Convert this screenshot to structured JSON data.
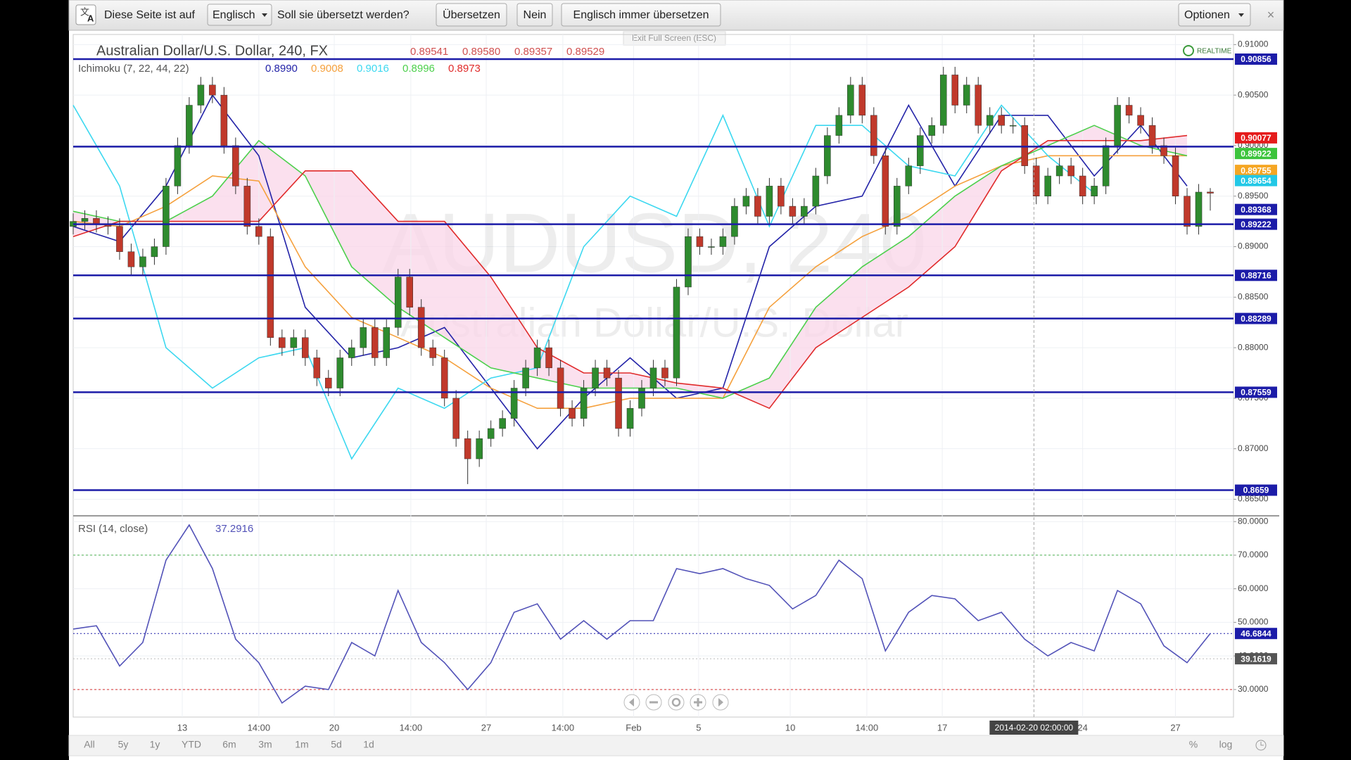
{
  "browser": {
    "translate_bar": {
      "prefix": "Diese Seite ist auf",
      "language": "Englisch",
      "question": "Soll sie übersetzt werden?",
      "translate": "Übersetzen",
      "no": "Nein",
      "always": "Englisch immer übersetzen",
      "options": "Optionen",
      "close": "×"
    },
    "exit_fullscreen": "Exit Full Screen (ESC)"
  },
  "chart_data": [
    {
      "type": "candlestick",
      "title": "Australian Dollar/U.S. Dollar, 240, FX",
      "watermark": [
        "AUDUSD, 240",
        "Australian Dollar/U.S. Dollar"
      ],
      "ohlc_legend": [
        "0.89541",
        "0.89580",
        "0.89357",
        "0.89529"
      ],
      "realtime": "REALTIME",
      "up_color": "#2e8b2e",
      "down_color": "#c0392b",
      "x": [
        0,
        1,
        2,
        3,
        4,
        5,
        6,
        7,
        8,
        9,
        10,
        11,
        12,
        13,
        14,
        15,
        16,
        17,
        18,
        19,
        20,
        21,
        22,
        23,
        24,
        25,
        26,
        27,
        28,
        29,
        30,
        31,
        32,
        33,
        34,
        35,
        36,
        37,
        38,
        39,
        40,
        41,
        42,
        43,
        44,
        45,
        46,
        47,
        48,
        49,
        50,
        51,
        52,
        53,
        54,
        55,
        56,
        57,
        58,
        59,
        60,
        61,
        62,
        63,
        64,
        65,
        66,
        67,
        68,
        69,
        70,
        71,
        72,
        73,
        74,
        75,
        76,
        77,
        78,
        79,
        80,
        81,
        82,
        83,
        84,
        85,
        86,
        87,
        88,
        89,
        90,
        91,
        92,
        93,
        94,
        95,
        96,
        97,
        98
      ],
      "open": [
        0.892,
        0.8925,
        0.8928,
        0.8922,
        0.892,
        0.8895,
        0.888,
        0.889,
        0.89,
        0.896,
        0.9,
        0.904,
        0.906,
        0.905,
        0.9,
        0.896,
        0.892,
        0.891,
        0.881,
        0.88,
        0.881,
        0.879,
        0.877,
        0.876,
        0.879,
        0.88,
        0.882,
        0.879,
        0.882,
        0.887,
        0.884,
        0.88,
        0.879,
        0.875,
        0.871,
        0.869,
        0.871,
        0.872,
        0.873,
        0.876,
        0.878,
        0.88,
        0.878,
        0.874,
        0.873,
        0.876,
        0.878,
        0.877,
        0.872,
        0.874,
        0.876,
        0.878,
        0.877,
        0.886,
        0.891,
        0.89,
        0.89,
        0.891,
        0.894,
        0.895,
        0.893,
        0.896,
        0.894,
        0.893,
        0.894,
        0.897,
        0.901,
        0.903,
        0.906,
        0.903,
        0.899,
        0.892,
        0.896,
        0.898,
        0.901,
        0.902,
        0.907,
        0.904,
        0.906,
        0.902,
        0.903,
        0.902,
        0.902,
        0.898,
        0.895,
        0.897,
        0.898,
        0.897,
        0.895,
        0.896,
        0.9,
        0.904,
        0.903,
        0.902,
        0.9,
        0.899,
        0.895,
        0.892,
        0.89541
      ],
      "high": [
        0.8933,
        0.8936,
        0.8936,
        0.893,
        0.8928,
        0.8903,
        0.8898,
        0.8908,
        0.8968,
        0.9008,
        0.9048,
        0.9068,
        0.9068,
        0.9058,
        0.9008,
        0.8968,
        0.8928,
        0.8918,
        0.8818,
        0.8818,
        0.8818,
        0.8798,
        0.8778,
        0.8798,
        0.8808,
        0.8828,
        0.8828,
        0.8828,
        0.8878,
        0.8878,
        0.8848,
        0.8808,
        0.8798,
        0.8758,
        0.8718,
        0.8718,
        0.8728,
        0.8738,
        0.8768,
        0.8788,
        0.8808,
        0.8808,
        0.8788,
        0.8748,
        0.8768,
        0.8788,
        0.8788,
        0.8778,
        0.8748,
        0.8768,
        0.8788,
        0.8788,
        0.8868,
        0.8918,
        0.8918,
        0.8908,
        0.8918,
        0.8948,
        0.8958,
        0.8958,
        0.8968,
        0.8968,
        0.8948,
        0.8948,
        0.8978,
        0.9018,
        0.9038,
        0.9068,
        0.9068,
        0.9038,
        0.8998,
        0.8968,
        0.8988,
        0.9018,
        0.9028,
        0.9078,
        0.9078,
        0.9068,
        0.9068,
        0.9038,
        0.9038,
        0.9028,
        0.9028,
        0.8988,
        0.8978,
        0.8988,
        0.8988,
        0.8978,
        0.8968,
        0.9008,
        0.9048,
        0.9048,
        0.9038,
        0.9028,
        0.9008,
        0.8998,
        0.8958,
        0.8962,
        0.8958
      ],
      "low": [
        0.8912,
        0.8917,
        0.8914,
        0.8912,
        0.8887,
        0.8872,
        0.8872,
        0.8882,
        0.8892,
        0.8952,
        0.8992,
        0.9032,
        0.9042,
        0.8992,
        0.8952,
        0.8912,
        0.8902,
        0.8802,
        0.8792,
        0.8792,
        0.8782,
        0.8762,
        0.8752,
        0.8752,
        0.8782,
        0.8792,
        0.8782,
        0.8782,
        0.8812,
        0.8832,
        0.8792,
        0.8782,
        0.8742,
        0.8702,
        0.8665,
        0.8682,
        0.8702,
        0.8712,
        0.8722,
        0.8752,
        0.8772,
        0.8772,
        0.8732,
        0.8722,
        0.8722,
        0.8752,
        0.8762,
        0.8712,
        0.8712,
        0.8732,
        0.8752,
        0.8762,
        0.8762,
        0.8852,
        0.8892,
        0.8892,
        0.8892,
        0.8902,
        0.8932,
        0.8922,
        0.8922,
        0.8932,
        0.8922,
        0.8922,
        0.8932,
        0.8962,
        0.9002,
        0.9022,
        0.9022,
        0.8982,
        0.8912,
        0.8912,
        0.8952,
        0.8972,
        0.9002,
        0.9012,
        0.9032,
        0.9032,
        0.9012,
        0.9012,
        0.9012,
        0.9012,
        0.8972,
        0.8942,
        0.8942,
        0.8962,
        0.8962,
        0.8942,
        0.8942,
        0.8952,
        0.8992,
        0.9022,
        0.9012,
        0.8992,
        0.8982,
        0.8942,
        0.8912,
        0.8912,
        0.89357
      ],
      "close": [
        0.8925,
        0.8928,
        0.8922,
        0.892,
        0.8895,
        0.888,
        0.889,
        0.89,
        0.896,
        0.9,
        0.904,
        0.906,
        0.905,
        0.9,
        0.896,
        0.892,
        0.891,
        0.881,
        0.88,
        0.881,
        0.879,
        0.877,
        0.876,
        0.879,
        0.88,
        0.882,
        0.879,
        0.882,
        0.887,
        0.884,
        0.88,
        0.879,
        0.875,
        0.871,
        0.869,
        0.871,
        0.872,
        0.873,
        0.876,
        0.878,
        0.88,
        0.878,
        0.874,
        0.873,
        0.876,
        0.878,
        0.877,
        0.872,
        0.874,
        0.876,
        0.878,
        0.877,
        0.886,
        0.891,
        0.89,
        0.89,
        0.891,
        0.894,
        0.895,
        0.893,
        0.896,
        0.894,
        0.893,
        0.894,
        0.897,
        0.901,
        0.903,
        0.906,
        0.903,
        0.899,
        0.892,
        0.896,
        0.898,
        0.901,
        0.902,
        0.907,
        0.904,
        0.906,
        0.902,
        0.903,
        0.902,
        0.902,
        0.898,
        0.895,
        0.897,
        0.898,
        0.897,
        0.895,
        0.896,
        0.9,
        0.904,
        0.903,
        0.902,
        0.9,
        0.899,
        0.895,
        0.892,
        0.8954,
        0.89529
      ],
      "ichimoku": {
        "name": "Ichimoku (7, 22, 44, 22)",
        "x": [
          0,
          4,
          8,
          12,
          16,
          20,
          24,
          28,
          32,
          36,
          40,
          44,
          48,
          52,
          56,
          60,
          64,
          68,
          72,
          76,
          80,
          84,
          88,
          92,
          96
        ],
        "cloud": {
          "color": "#f9d6e8",
          "between": [
            3,
            4
          ]
        },
        "series": [
          {
            "color": "#2323a8",
            "legend_value": "0.8990",
            "values": [
              0.892,
              0.8905,
              0.896,
              0.905,
              0.899,
              0.884,
              0.879,
              0.88,
              0.882,
              0.876,
              0.87,
              0.875,
              0.879,
              0.875,
              0.876,
              0.89,
              0.894,
              0.895,
              0.904,
              0.896,
              0.903,
              0.903,
              0.897,
              0.902,
              0.896
            ]
          },
          {
            "color": "#f5a03c",
            "legend_value": "0.9008",
            "values": [
              0.8925,
              0.892,
              0.894,
              0.897,
              0.8965,
              0.888,
              0.883,
              0.881,
              0.879,
              0.876,
              0.874,
              0.874,
              0.875,
              0.875,
              0.875,
              0.884,
              0.888,
              0.891,
              0.893,
              0.896,
              0.898,
              0.899,
              0.899,
              0.899,
              0.899
            ]
          },
          {
            "color": "#3cd8f0",
            "legend_value": "0.9016",
            "values": [
              0.904,
              0.896,
              0.88,
              0.876,
              0.879,
              0.88,
              0.869,
              0.876,
              0.874,
              0.877,
              0.878,
              0.89,
              0.895,
              0.893,
              0.903,
              0.892,
              0.902,
              0.902,
              0.898,
              0.897,
              0.904,
              0.899,
              0.8953,
              null,
              null
            ]
          },
          {
            "color": "#4cd04c",
            "legend_value": "0.8996",
            "values": [
              0.8935,
              0.8925,
              0.8925,
              0.895,
              0.9005,
              0.897,
              0.888,
              0.884,
              0.881,
              0.878,
              0.877,
              0.876,
              0.876,
              0.876,
              0.875,
              0.877,
              0.884,
              0.888,
              0.891,
              0.895,
              0.898,
              0.9,
              0.902,
              0.9,
              0.899
            ]
          },
          {
            "color": "#e02a2a",
            "legend_value": "0.8973",
            "values": [
              0.891,
              0.8925,
              0.8925,
              0.8925,
              0.8925,
              0.8975,
              0.8975,
              0.8925,
              0.8925,
              0.887,
              0.88,
              0.8775,
              0.8775,
              0.8765,
              0.876,
              0.874,
              0.88,
              0.883,
              0.886,
              0.89,
              0.8975,
              0.9005,
              0.9005,
              0.9005,
              0.901
            ]
          }
        ]
      },
      "levels": [
        0.90856,
        0.8999,
        0.89222,
        0.88716,
        0.88289,
        0.87559,
        0.8659
      ],
      "level_color": "#1c1ca8",
      "untagged_levels": [
        1
      ],
      "price_tags": [
        {
          "value": 0.90077,
          "color": "#e51c1c"
        },
        {
          "value": 0.89922,
          "color": "#3cc43c"
        },
        {
          "value": 0.89755,
          "color": "#f5a623"
        },
        {
          "value": 0.89654,
          "color": "#22c8e6"
        },
        {
          "value": 0.89368,
          "color": "#1c1ca8"
        }
      ],
      "xlim": [
        0,
        100
      ],
      "ylim": [
        0.8635,
        0.911
      ],
      "yticks": [
        {
          "value": 0.865,
          "label": "0.86500"
        },
        {
          "value": 0.87,
          "label": "0.87000"
        },
        {
          "value": 0.875,
          "label": "0.87500"
        },
        {
          "value": 0.88,
          "label": "0.88000"
        },
        {
          "value": 0.885,
          "label": "0.88500"
        },
        {
          "value": 0.89,
          "label": "0.89000"
        },
        {
          "value": 0.895,
          "label": "0.89500"
        },
        {
          "value": 0.9,
          "label": "0.90000"
        },
        {
          "value": 0.905,
          "label": "0.90500"
        },
        {
          "value": 0.91,
          "label": "0.91000"
        }
      ],
      "grid": true
    },
    {
      "type": "line",
      "title": "RSI (14, close)",
      "legend_value": "37.2916",
      "color": "#5252b8",
      "x": [
        0,
        2,
        4,
        6,
        8,
        10,
        12,
        14,
        16,
        18,
        20,
        22,
        24,
        26,
        28,
        30,
        32,
        34,
        36,
        38,
        40,
        42,
        44,
        46,
        48,
        50,
        52,
        54,
        56,
        58,
        60,
        62,
        64,
        66,
        68,
        70,
        72,
        74,
        76,
        78,
        80,
        82,
        84,
        86,
        88,
        90,
        92,
        94,
        96,
        98
      ],
      "values": [
        48,
        49,
        37,
        44,
        68.5,
        79,
        66,
        45,
        38,
        26,
        31,
        30,
        44,
        40,
        59.5,
        44,
        38,
        30,
        38,
        53,
        55.5,
        45,
        50.5,
        45,
        50.5,
        50.5,
        66,
        64.5,
        66,
        63,
        61,
        54,
        58,
        68.5,
        63,
        41.5,
        53,
        58,
        57,
        50.5,
        53,
        45,
        40,
        44,
        41.5,
        59.5,
        55.5,
        43,
        38,
        46.6844
      ],
      "bands": [
        {
          "value": 70,
          "color": "#4caf50"
        },
        {
          "value": 30,
          "color": "#d83030"
        }
      ],
      "tags": [
        {
          "value": 39.1619,
          "color": "#555555"
        }
      ],
      "last_tag_color": "#1c1ca8",
      "xlim": [
        0,
        100
      ],
      "ylim": [
        21.8,
        81.3
      ],
      "yticks": [
        {
          "value": 30,
          "label": "30.0000"
        },
        {
          "value": 40,
          "label": "40.0000"
        },
        {
          "value": 50,
          "label": "50.0000"
        },
        {
          "value": 60,
          "label": "60.0000"
        },
        {
          "value": 70,
          "label": "70.0000"
        },
        {
          "value": 80,
          "label": "80.0000"
        }
      ],
      "xticks": [
        {
          "value": 9.4,
          "label": "13"
        },
        {
          "value": 16,
          "label": "14:00"
        },
        {
          "value": 22.5,
          "label": "20"
        },
        {
          "value": 29.1,
          "label": "14:00"
        },
        {
          "value": 35.6,
          "label": "27"
        },
        {
          "value": 42.2,
          "label": "14:00"
        },
        {
          "value": 48.3,
          "label": "Feb"
        },
        {
          "value": 53.9,
          "label": "5"
        },
        {
          "value": 61.8,
          "label": "10"
        },
        {
          "value": 68.4,
          "label": "14:00"
        },
        {
          "value": 74.9,
          "label": "17"
        },
        {
          "value": 87,
          "label": "24"
        },
        {
          "value": 95,
          "label": "27"
        }
      ],
      "crosshair": {
        "x": 82.8,
        "label": "2014-02-20 02:00:00"
      },
      "grid": true
    }
  ],
  "toolbar": {
    "ranges": [
      "All",
      "5y",
      "1y",
      "YTD",
      "6m",
      "3m",
      "1m",
      "5d",
      "1d"
    ],
    "percent": "%",
    "log": "log"
  }
}
